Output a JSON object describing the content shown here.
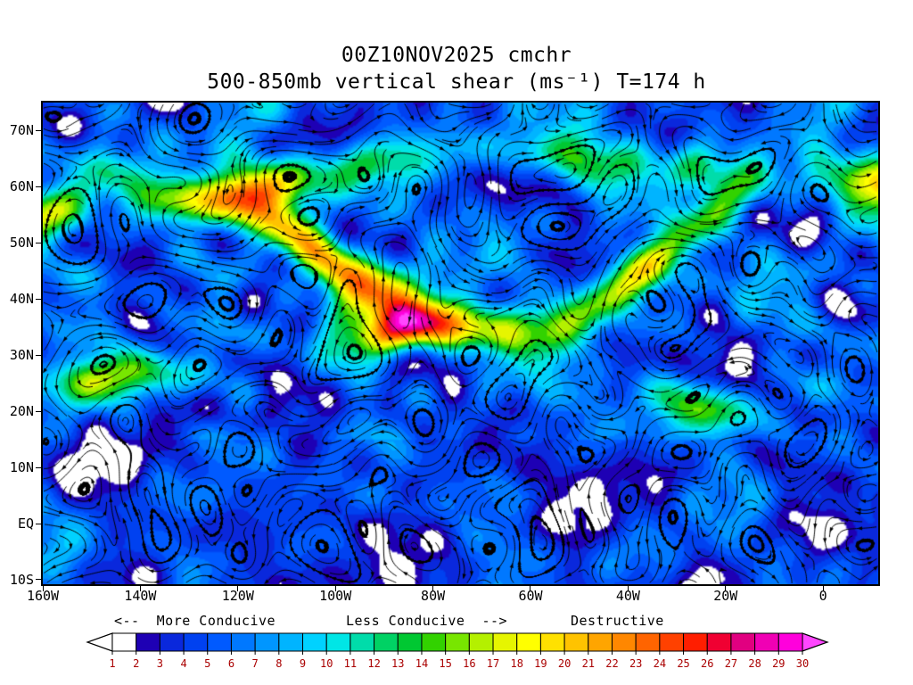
{
  "chart_data": {
    "type": "heatmap",
    "variant": "streamline_shaded_weather_map",
    "title": "00Z10NOV2025 cmchr",
    "subtitle": "500-850mb vertical shear (ms⁻¹) T=174 h",
    "overlay": "black streamlines with arrowheads",
    "x_axis": {
      "lon_min": -160,
      "lon_max": 11.3,
      "ticks": [
        {
          "label": "160W",
          "lon": -160
        },
        {
          "label": "140W",
          "lon": -140
        },
        {
          "label": "120W",
          "lon": -120
        },
        {
          "label": "100W",
          "lon": -100
        },
        {
          "label": "80W",
          "lon": -80
        },
        {
          "label": "60W",
          "lon": -60
        },
        {
          "label": "40W",
          "lon": -40
        },
        {
          "label": "20W",
          "lon": -20
        },
        {
          "label": "0",
          "lon": 0
        }
      ]
    },
    "y_axis": {
      "lat_min": -10.8,
      "lat_max": 75,
      "ticks": [
        {
          "label": "70N",
          "lat": 70
        },
        {
          "label": "60N",
          "lat": 60
        },
        {
          "label": "50N",
          "lat": 50
        },
        {
          "label": "40N",
          "lat": 40
        },
        {
          "label": "30N",
          "lat": 30
        },
        {
          "label": "20N",
          "lat": 20
        },
        {
          "label": "10N",
          "lat": 10
        },
        {
          "label": "EQ",
          "lat": 0
        },
        {
          "label": "10S",
          "lat": -10
        }
      ]
    },
    "annotations": {
      "left": "<--  More Conducive",
      "middle": "Less Conducive  -->",
      "right": "Destructive"
    },
    "colorbar": {
      "tick_labels": [
        "1",
        "2",
        "3",
        "4",
        "5",
        "6",
        "7",
        "8",
        "9",
        "10",
        "11",
        "12",
        "13",
        "14",
        "15",
        "16",
        "17",
        "18",
        "19",
        "20",
        "21",
        "22",
        "23",
        "24",
        "25",
        "26",
        "27",
        "28",
        "29",
        "30"
      ],
      "segment_colors": [
        "#ffffff",
        "#1e00b4",
        "#0a28dc",
        "#0041f0",
        "#005aff",
        "#0078ff",
        "#0096ff",
        "#00b4ff",
        "#00d2ff",
        "#00e6e6",
        "#00dcaa",
        "#00d264",
        "#00c832",
        "#32d200",
        "#78e600",
        "#b4f000",
        "#e6f500",
        "#ffff00",
        "#ffe100",
        "#ffc300",
        "#ffa500",
        "#ff8700",
        "#ff6400",
        "#ff4100",
        "#ff1e00",
        "#f00032",
        "#e10080",
        "#f000b4",
        "#ff00dc"
      ],
      "left_arrow_color": "#ffffff",
      "right_arrow_color": "#ff46ff",
      "tick_label_color": "#aa0000",
      "stream_line_color": "#000000"
    }
  }
}
